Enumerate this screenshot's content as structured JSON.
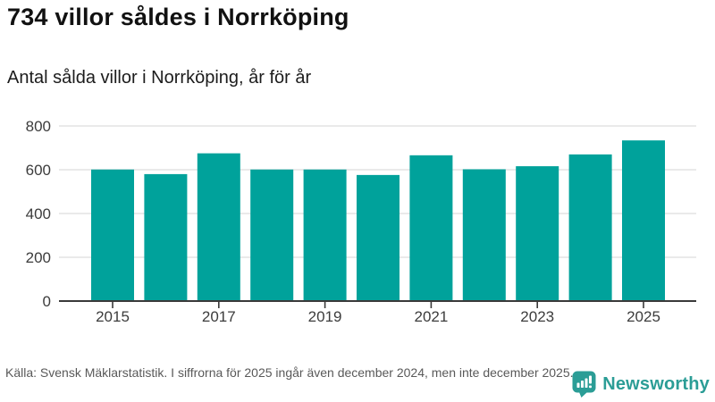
{
  "header": {
    "title": "734 villor såldes i Norrköping",
    "subtitle": "Antal sålda villor i Norrköping, år för år"
  },
  "chart_data": {
    "type": "bar",
    "title": "734 villor såldes i Norrköping",
    "subtitle": "Antal sålda villor i Norrköping, år för år",
    "categories": [
      "2015",
      "2016",
      "2017",
      "2018",
      "2019",
      "2020",
      "2021",
      "2022",
      "2023",
      "2024",
      "2025"
    ],
    "values": [
      601,
      580,
      675,
      601,
      601,
      576,
      666,
      602,
      616,
      670,
      734
    ],
    "xlabel": "",
    "ylabel": "",
    "ylim": [
      0,
      800
    ],
    "yticks": [
      0,
      200,
      400,
      600,
      800
    ],
    "xtick_labels": [
      "2015",
      "2017",
      "2019",
      "2021",
      "2023",
      "2025"
    ],
    "grid": true,
    "legend": false,
    "bar_color": "#00A29B"
  },
  "footer": {
    "source": "Källa: Svensk Mäklarstatistik. I siffrorna för 2025 ingår även december 2024, men inte december 2025.",
    "logo_text": "Newsworthy"
  },
  "colors": {
    "accent": "#00A29B",
    "bar": "#00A29B",
    "logo": "#2B9D96",
    "grid": "#E3E3E3",
    "axis_line": "#3A3A3A",
    "tick_text": "#3C3C3C",
    "title_text": "#111111",
    "muted_text": "#595959"
  }
}
